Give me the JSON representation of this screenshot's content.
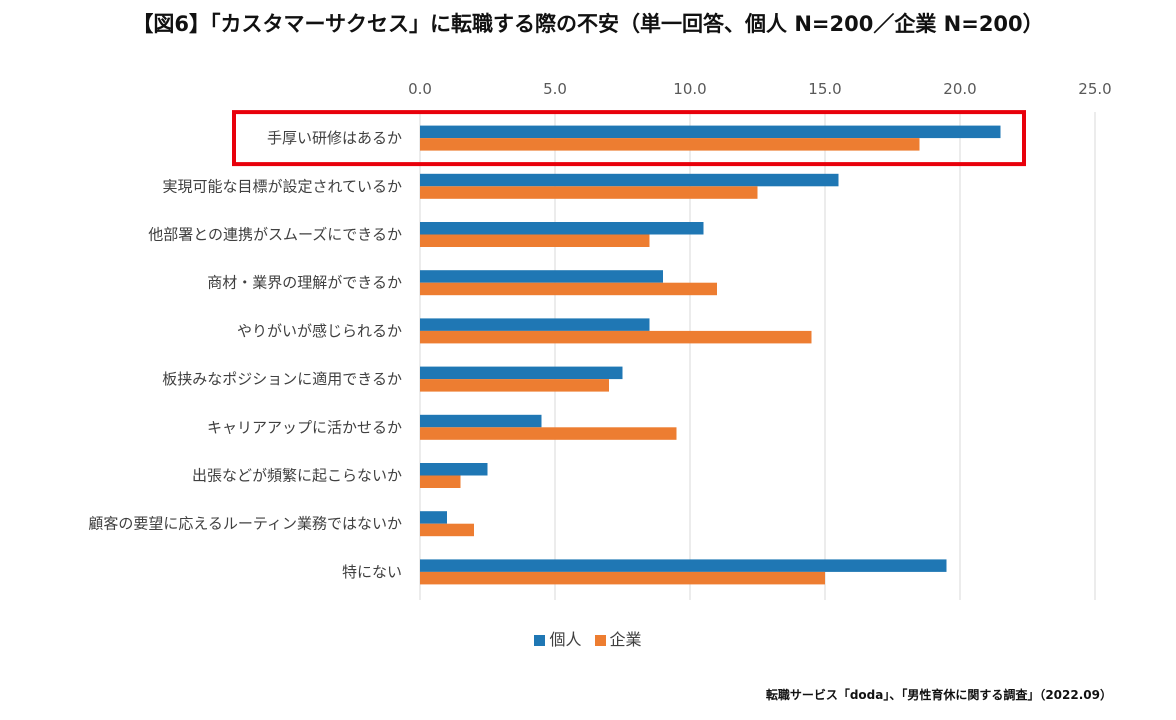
{
  "chart_data": {
    "type": "bar",
    "orientation": "horizontal",
    "title": "【図6】「カスタマーサクセス」に転職する際の不安（単一回答、個人 N=200／企業 N=200）",
    "categories": [
      "手厚い研修はあるか",
      "実現可能な目標が設定されているか",
      "他部署との連携がスムーズにできるか",
      "商材・業界の理解ができるか",
      "やりがいが感じられるか",
      "板挟みなポジションに適用できるか",
      "キャリアアップに活かせるか",
      "出張などが頻繁に起こらないか",
      "顧客の要望に応えるルーティン業務ではないか",
      "特にない"
    ],
    "series": [
      {
        "name": "個人",
        "color": "#1F77B4",
        "values": [
          21.5,
          15.5,
          10.5,
          9.0,
          8.5,
          7.5,
          4.5,
          2.5,
          1.0,
          19.5
        ]
      },
      {
        "name": "企業",
        "color": "#ED7D31",
        "values": [
          18.5,
          12.5,
          8.5,
          11.0,
          14.5,
          7.0,
          9.5,
          1.5,
          2.0,
          15.0
        ]
      }
    ],
    "xlim": [
      0,
      25
    ],
    "ticks": [
      "0.0",
      "5.0",
      "10.0",
      "15.0",
      "20.0",
      "25.0"
    ],
    "tick_values": [
      0,
      5,
      10,
      15,
      20,
      25
    ],
    "highlight_category": "手厚い研修はあるか",
    "highlight_color": "#E8000B",
    "grid": true,
    "legend_position": "bottom"
  },
  "source": "転職サービス「doda」、「男性育休に関する調査」（2022.09）"
}
